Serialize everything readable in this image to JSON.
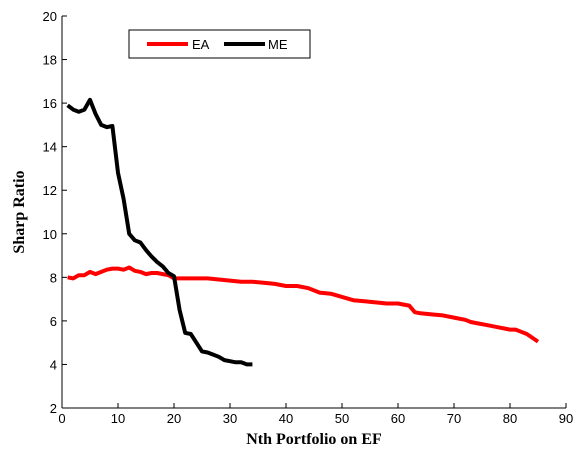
{
  "chart_data": {
    "type": "line",
    "xlabel": "Nth Portfolio on EF",
    "ylabel": "Sharp Ratio",
    "xlim": [
      0,
      90
    ],
    "ylim": [
      2,
      20
    ],
    "xticks": [
      0,
      10,
      20,
      30,
      40,
      50,
      60,
      70,
      80,
      90
    ],
    "yticks": [
      2,
      4,
      6,
      8,
      10,
      12,
      14,
      16,
      18,
      20
    ],
    "xtick_labels": [
      "0",
      "10",
      "20",
      "30",
      "40",
      "50",
      "60",
      "70",
      "80",
      "90"
    ],
    "ytick_labels": [
      "2",
      "4",
      "6",
      "8",
      "10",
      "12",
      "14",
      "16",
      "18",
      "20"
    ],
    "grid": false,
    "legend_position": "top-left",
    "series": [
      {
        "name": "EA",
        "color": "#ff0000",
        "x": [
          1,
          2,
          3,
          4,
          5,
          6,
          7,
          8,
          9,
          10,
          11,
          12,
          13,
          14,
          15,
          16,
          17,
          18,
          19,
          20,
          22,
          24,
          26,
          28,
          30,
          32,
          34,
          36,
          38,
          40,
          42,
          44,
          46,
          48,
          50,
          52,
          54,
          56,
          58,
          60,
          62,
          63,
          64,
          66,
          68,
          70,
          72,
          73,
          74,
          76,
          78,
          79,
          80,
          81,
          82,
          83,
          85
        ],
        "y": [
          8.0,
          7.95,
          8.1,
          8.1,
          8.25,
          8.15,
          8.25,
          8.35,
          8.4,
          8.4,
          8.35,
          8.45,
          8.3,
          8.25,
          8.15,
          8.2,
          8.2,
          8.15,
          8.1,
          7.95,
          7.95,
          7.95,
          7.95,
          7.9,
          7.85,
          7.8,
          7.8,
          7.75,
          7.7,
          7.6,
          7.6,
          7.5,
          7.3,
          7.25,
          7.1,
          6.95,
          6.9,
          6.85,
          6.8,
          6.8,
          6.7,
          6.4,
          6.35,
          6.3,
          6.25,
          6.15,
          6.05,
          5.95,
          5.9,
          5.8,
          5.7,
          5.65,
          5.6,
          5.6,
          5.5,
          5.4,
          5.05
        ]
      },
      {
        "name": "ME",
        "color": "#000000",
        "x": [
          1,
          2,
          3,
          4,
          5,
          6,
          7,
          8,
          9,
          10,
          11,
          12,
          13,
          14,
          15,
          16,
          17,
          18,
          19,
          20,
          21,
          22,
          23,
          24,
          25,
          26,
          27,
          28,
          29,
          30,
          31,
          32,
          33,
          34
        ],
        "y": [
          15.9,
          15.7,
          15.6,
          15.7,
          16.15,
          15.5,
          15.0,
          14.9,
          14.95,
          12.8,
          11.6,
          10.0,
          9.7,
          9.6,
          9.25,
          8.95,
          8.7,
          8.5,
          8.2,
          8.05,
          6.5,
          5.45,
          5.4,
          5.0,
          4.6,
          4.55,
          4.45,
          4.35,
          4.2,
          4.15,
          4.1,
          4.1,
          4.0,
          4.0
        ]
      }
    ]
  }
}
